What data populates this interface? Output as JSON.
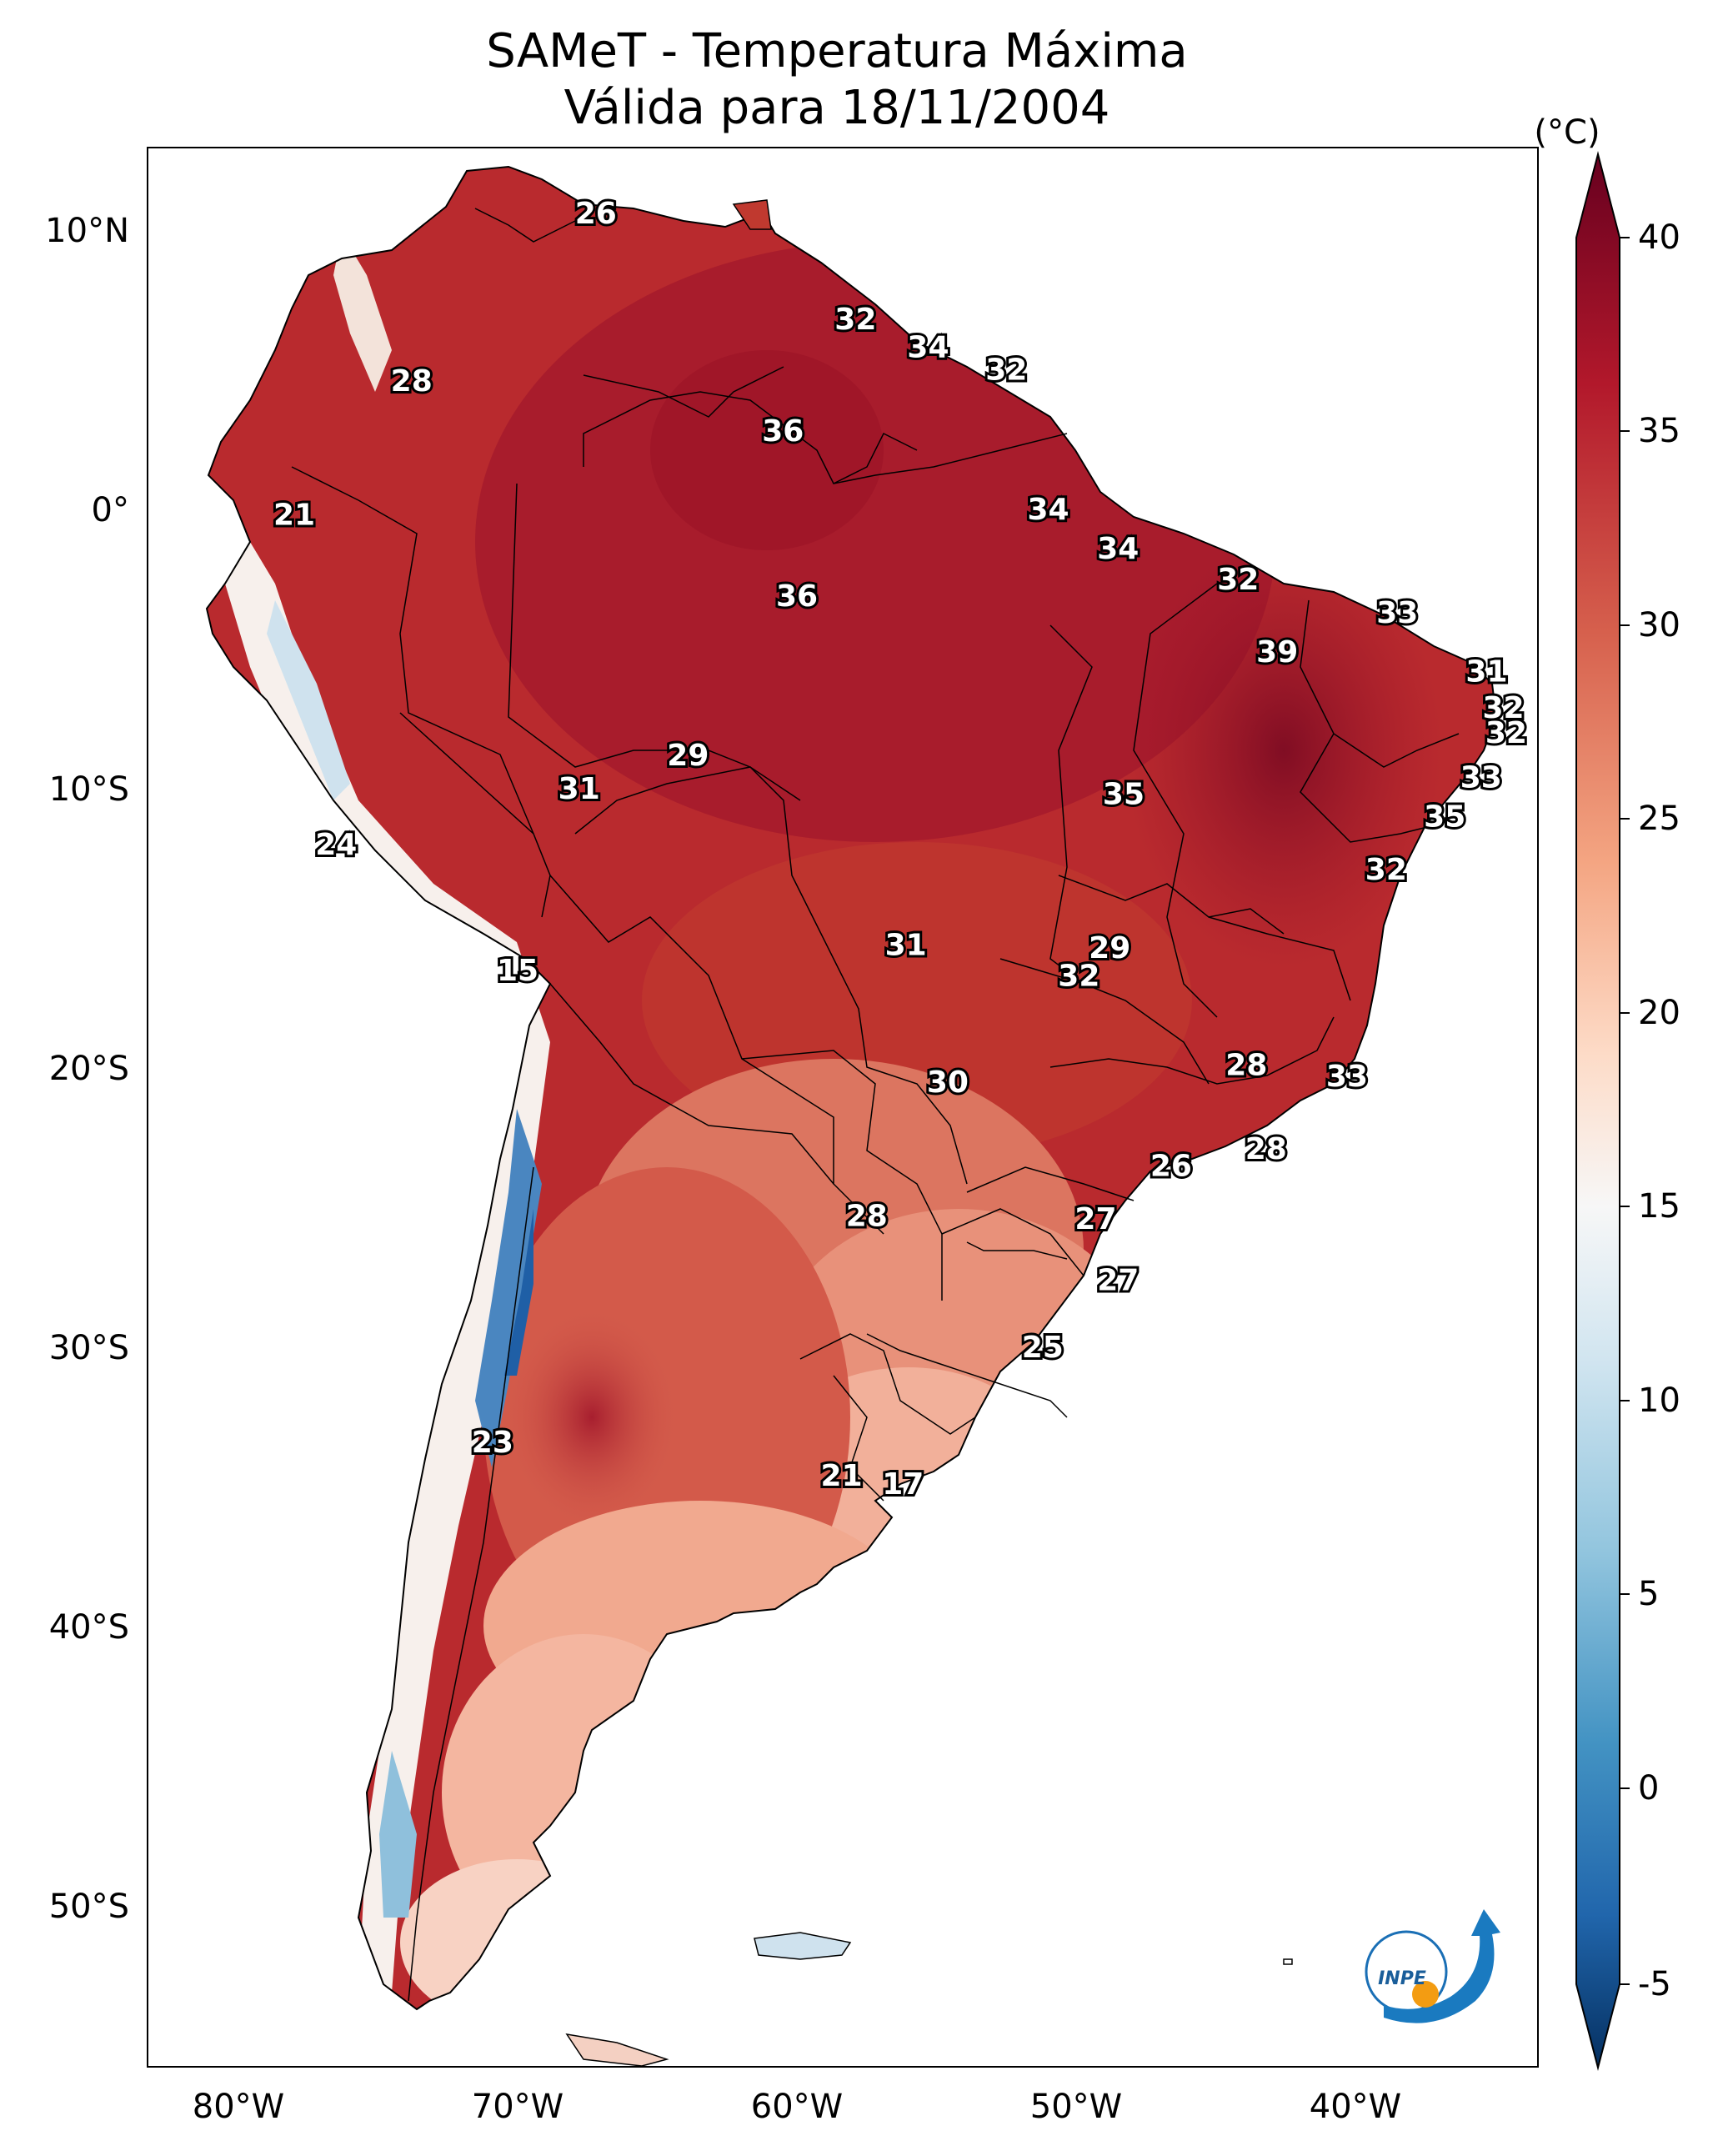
{
  "title": {
    "line1": "SAMeT - Temperatura Máxima",
    "line2": "Válida para 18/11/2004"
  },
  "colorbar": {
    "unit": "(°C)",
    "min": -5,
    "max": 40,
    "ticks": [
      "40",
      "35",
      "30",
      "25",
      "20",
      "15",
      "10",
      "5",
      "0",
      "-5"
    ],
    "colors": [
      "#67001f",
      "#b2182b",
      "#d6604d",
      "#f4a582",
      "#fddbc7",
      "#f7f7f7",
      "#d1e5f0",
      "#92c5de",
      "#4393c3",
      "#2166ac",
      "#053061"
    ]
  },
  "axes": {
    "lat_labels": [
      "10°N",
      "0°",
      "10°S",
      "20°S",
      "30°S",
      "40°S",
      "50°S"
    ],
    "lon_labels": [
      "80°W",
      "70°W",
      "60°W",
      "50°W",
      "40°W"
    ]
  },
  "logo": {
    "text": "INPE"
  },
  "station_labels": [
    {
      "value": "26",
      "lon": -67.2,
      "lat": 10.6
    },
    {
      "value": "28",
      "lon": -73.8,
      "lat": 4.6
    },
    {
      "value": "21",
      "lon": -78.0,
      "lat": -0.2
    },
    {
      "value": "24",
      "lon": -76.5,
      "lat": -12.0
    },
    {
      "value": "15",
      "lon": -70.0,
      "lat": -16.5
    },
    {
      "value": "23",
      "lon": -70.9,
      "lat": -33.4
    },
    {
      "value": "32",
      "lon": -57.9,
      "lat": 6.8
    },
    {
      "value": "34",
      "lon": -55.3,
      "lat": 5.8
    },
    {
      "value": "32",
      "lon": -52.5,
      "lat": 5.0
    },
    {
      "value": "36",
      "lon": -60.5,
      "lat": 2.8
    },
    {
      "value": "34",
      "lon": -51.0,
      "lat": 0.0
    },
    {
      "value": "34",
      "lon": -48.5,
      "lat": -1.4
    },
    {
      "value": "32",
      "lon": -44.2,
      "lat": -2.5
    },
    {
      "value": "36",
      "lon": -60.0,
      "lat": -3.1
    },
    {
      "value": "33",
      "lon": -38.5,
      "lat": -3.7
    },
    {
      "value": "39",
      "lon": -42.8,
      "lat": -5.1
    },
    {
      "value": "31",
      "lon": -35.3,
      "lat": -5.8
    },
    {
      "value": "32",
      "lon": -34.7,
      "lat": -7.1
    },
    {
      "value": "32",
      "lon": -34.6,
      "lat": -8.0
    },
    {
      "value": "29",
      "lon": -63.9,
      "lat": -8.8
    },
    {
      "value": "31",
      "lon": -67.8,
      "lat": -10.0
    },
    {
      "value": "35",
      "lon": -48.3,
      "lat": -10.2
    },
    {
      "value": "33",
      "lon": -35.5,
      "lat": -9.6
    },
    {
      "value": "35",
      "lon": -36.8,
      "lat": -11.0
    },
    {
      "value": "32",
      "lon": -38.9,
      "lat": -12.9
    },
    {
      "value": "31",
      "lon": -56.1,
      "lat": -15.6
    },
    {
      "value": "29",
      "lon": -48.8,
      "lat": -15.7
    },
    {
      "value": "32",
      "lon": -49.9,
      "lat": -16.7
    },
    {
      "value": "28",
      "lon": -43.9,
      "lat": -19.9
    },
    {
      "value": "33",
      "lon": -40.3,
      "lat": -20.3
    },
    {
      "value": "30",
      "lon": -54.6,
      "lat": -20.5
    },
    {
      "value": "28",
      "lon": -43.2,
      "lat": -22.9
    },
    {
      "value": "26",
      "lon": -46.6,
      "lat": -23.5
    },
    {
      "value": "28",
      "lon": -57.5,
      "lat": -25.3
    },
    {
      "value": "27",
      "lon": -49.3,
      "lat": -25.4
    },
    {
      "value": "27",
      "lon": -48.5,
      "lat": -27.6
    },
    {
      "value": "25",
      "lon": -51.2,
      "lat": -30.0
    },
    {
      "value": "21",
      "lon": -58.4,
      "lat": -34.6
    },
    {
      "value": "17",
      "lon": -56.2,
      "lat": -34.9
    }
  ]
}
